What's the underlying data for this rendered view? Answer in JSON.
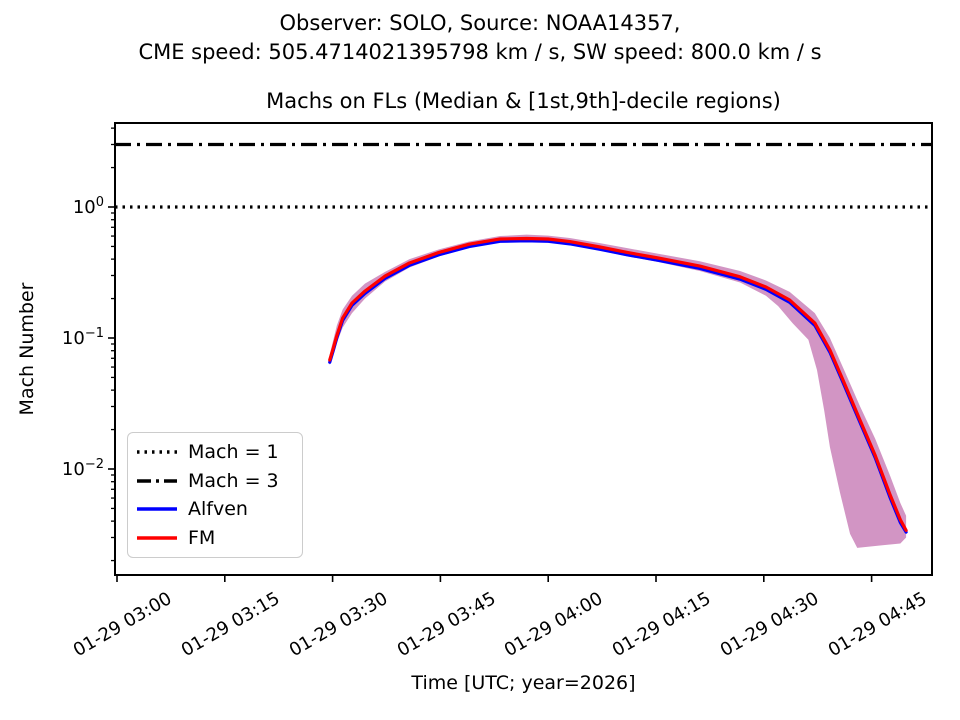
{
  "figure": {
    "suptitle_line1": "Observer: SOLO, Source: NOAA14357,",
    "suptitle_line2": "CME speed: 505.4714021395798 km / s, SW speed: 800.0 km / s"
  },
  "chart_data": {
    "type": "line",
    "title": "Machs on FLs (Median & [1st,9th]-decile regions)",
    "xlabel": "Time [UTC; year=2026]",
    "ylabel": "Mach Number",
    "yscale": "log",
    "ylim": [
      0.00155,
      4.4
    ],
    "x_unit": "minutes after 01-29 03:00 UTC (year 2026)",
    "x_range_minutes": [
      -0.3,
      113.4
    ],
    "grid": false,
    "legend_position": "lower left",
    "x_ticks": [
      {
        "minutes": 0,
        "label": "01-29 03:00"
      },
      {
        "minutes": 15,
        "label": "01-29 03:15"
      },
      {
        "minutes": 30,
        "label": "01-29 03:30"
      },
      {
        "minutes": 45,
        "label": "01-29 03:45"
      },
      {
        "minutes": 60,
        "label": "01-29 04:00"
      },
      {
        "minutes": 75,
        "label": "01-29 04:15"
      },
      {
        "minutes": 90,
        "label": "01-29 04:30"
      },
      {
        "minutes": 105,
        "label": "01-29 04:45"
      }
    ],
    "y_ticks": [
      {
        "value": 1,
        "base": "10",
        "exponent": "0"
      },
      {
        "value": 0.1,
        "base": "10",
        "exponent": "−1"
      },
      {
        "value": 0.01,
        "base": "10",
        "exponent": "−2"
      }
    ],
    "reference_lines": [
      {
        "name": "Mach = 1",
        "value": 1,
        "style": "dotted",
        "color": "#000000"
      },
      {
        "name": "Mach = 3",
        "value": 3,
        "style": "dashdot",
        "color": "#000000"
      }
    ],
    "series": [
      {
        "name": "Alfven",
        "color": "#0000ff",
        "t_minutes": [
          29.6,
          30.1,
          30.6,
          31.4,
          32.7,
          34.5,
          37.3,
          40.7,
          44.8,
          49,
          53.3,
          57,
          60,
          63,
          67.2,
          71,
          75.3,
          81.1,
          86.7,
          90.3,
          93.6,
          97.1,
          99.2,
          101.3,
          103.4,
          105.5,
          107.6,
          109,
          109.8
        ],
        "mach": [
          0.0653,
          0.0806,
          0.1008,
          0.1363,
          0.1776,
          0.2189,
          0.2851,
          0.359,
          0.432,
          0.4992,
          0.5472,
          0.552,
          0.5472,
          0.5232,
          0.4752,
          0.432,
          0.3917,
          0.3398,
          0.2813,
          0.2352,
          0.1872,
          0.1248,
          0.0778,
          0.0422,
          0.0226,
          0.0122,
          0.006,
          0.0039,
          0.0033
        ]
      },
      {
        "name": "FM",
        "color": "#ff0000",
        "t_minutes": [
          29.6,
          30.1,
          30.6,
          31.4,
          32.7,
          34.5,
          37.3,
          40.7,
          44.8,
          49,
          53.3,
          57,
          60,
          63,
          67.2,
          71,
          75.3,
          81.1,
          86.7,
          90.3,
          93.6,
          97.1,
          99.2,
          101.3,
          103.4,
          105.5,
          107.6,
          109,
          109.8
        ],
        "mach": [
          0.068,
          0.084,
          0.105,
          0.142,
          0.185,
          0.228,
          0.297,
          0.374,
          0.45,
          0.52,
          0.57,
          0.575,
          0.57,
          0.545,
          0.495,
          0.45,
          0.408,
          0.354,
          0.293,
          0.245,
          0.195,
          0.13,
          0.081,
          0.044,
          0.0235,
          0.0127,
          0.0063,
          0.0041,
          0.0034
        ]
      }
    ],
    "decile_band": {
      "name": "[1st,9th]-decile region",
      "color": "#d295c4",
      "upper_t_minutes": [
        29.6,
        30.6,
        31.4,
        32.7,
        34.5,
        37.3,
        40.7,
        44.8,
        49,
        53.3,
        57,
        60,
        63,
        67.2,
        71,
        75.3,
        81.1,
        86.7,
        90.3,
        93.6,
        97.1,
        99.2,
        101.3,
        103.4,
        105.5,
        107.6,
        109,
        109.8
      ],
      "upper_mach": [
        0.075,
        0.125,
        0.165,
        0.21,
        0.26,
        0.32,
        0.4,
        0.475,
        0.545,
        0.6,
        0.615,
        0.605,
        0.58,
        0.53,
        0.485,
        0.44,
        0.385,
        0.325,
        0.275,
        0.225,
        0.155,
        0.1,
        0.055,
        0.03,
        0.017,
        0.0088,
        0.0055,
        0.0044
      ],
      "lower_t_minutes": [
        29.6,
        30.6,
        31.4,
        32.7,
        34.5,
        37.3,
        40.7,
        44.8,
        49,
        53.3,
        57,
        60,
        63,
        67.2,
        71,
        75.3,
        81.1,
        86.7,
        90.3,
        92,
        94,
        96.2,
        97.4,
        98.4,
        99.2,
        100.6,
        102,
        103,
        106,
        109,
        109.8
      ],
      "lower_mach": [
        0.062,
        0.092,
        0.12,
        0.155,
        0.2,
        0.27,
        0.345,
        0.42,
        0.49,
        0.54,
        0.545,
        0.54,
        0.515,
        0.465,
        0.42,
        0.38,
        0.325,
        0.265,
        0.21,
        0.175,
        0.13,
        0.097,
        0.057,
        0.028,
        0.0147,
        0.0066,
        0.0032,
        0.0025,
        0.0026,
        0.0027,
        0.003
      ]
    },
    "legend": {
      "entries": [
        {
          "label": "Mach = 1",
          "color": "#000000",
          "dash": "dotted"
        },
        {
          "label": "Mach = 3",
          "color": "#000000",
          "dash": "dashdot"
        },
        {
          "label": "Alfven",
          "color": "#0000ff",
          "dash": "solid"
        },
        {
          "label": "FM",
          "color": "#ff0000",
          "dash": "solid"
        }
      ]
    }
  }
}
